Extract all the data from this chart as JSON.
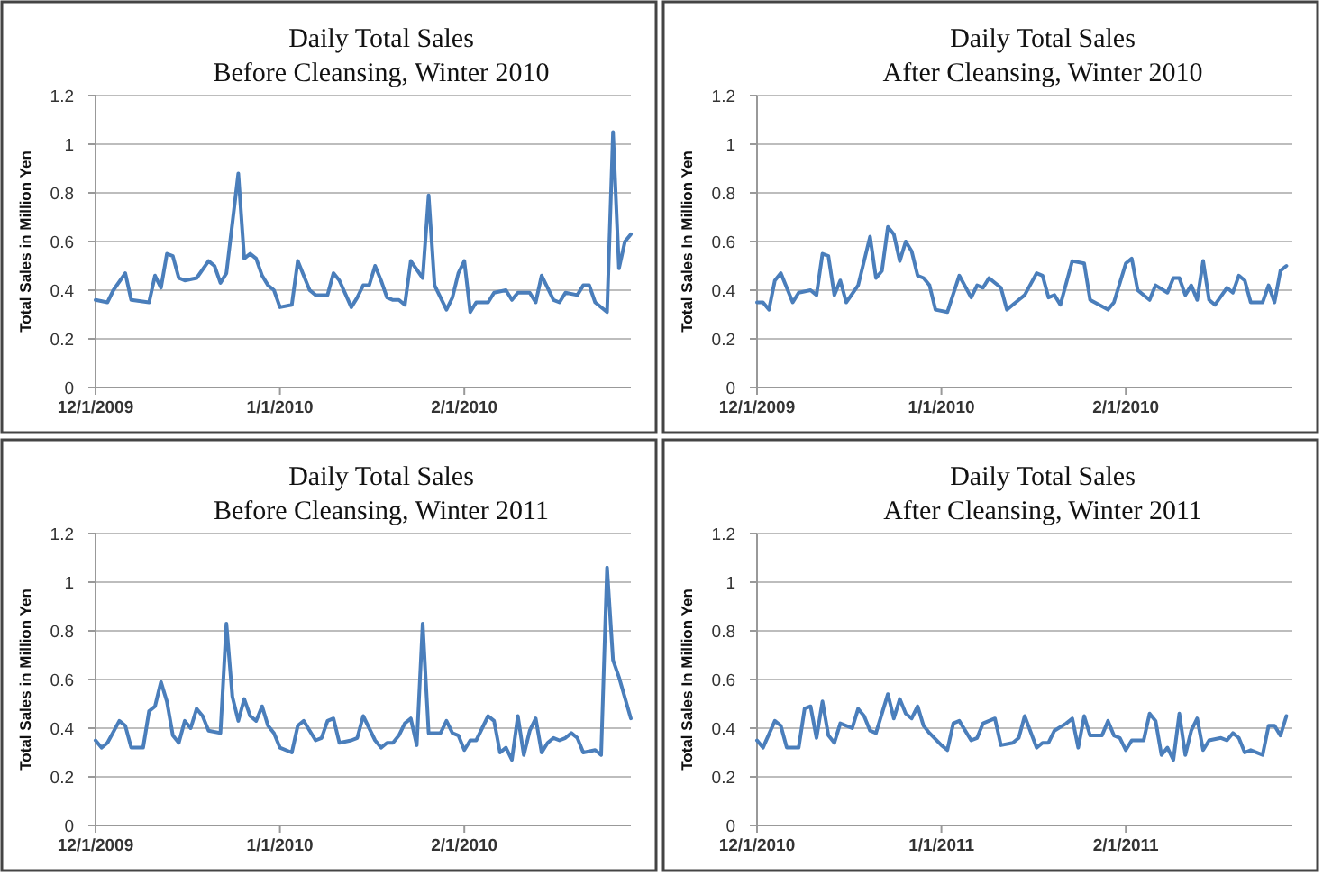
{
  "chart_data": [
    {
      "type": "line",
      "title": "Daily Total Sales",
      "subtitle": "Before Cleansing, Winter 2010",
      "ylabel": "Total Sales in Million Yen",
      "color": "#4a7ebb",
      "grid": "y",
      "xlim": [
        "2009-12-01",
        "2010-03-01"
      ],
      "ylim": [
        0,
        1.2
      ],
      "yticks": [
        0,
        0.2,
        0.4,
        0.6,
        0.8,
        1,
        1.2
      ],
      "xticks": [
        {
          "value": "2009-12-01",
          "label": "12/1/2009"
        },
        {
          "value": "2010-01-01",
          "label": "1/1/2010"
        },
        {
          "value": "2010-02-01",
          "label": "2/1/2010"
        }
      ],
      "x": [
        "2009-12-01",
        "2009-12-03",
        "2009-12-04",
        "2009-12-06",
        "2009-12-07",
        "2009-12-10",
        "2009-12-11",
        "2009-12-12",
        "2009-12-13",
        "2009-12-14",
        "2009-12-15",
        "2009-12-16",
        "2009-12-18",
        "2009-12-20",
        "2009-12-21",
        "2009-12-22",
        "2009-12-23",
        "2009-12-25",
        "2009-12-26",
        "2009-12-27",
        "2009-12-28",
        "2009-12-29",
        "2009-12-30",
        "2009-12-31",
        "2010-01-01",
        "2010-01-03",
        "2010-01-04",
        "2010-01-06",
        "2010-01-07",
        "2010-01-09",
        "2010-01-10",
        "2010-01-11",
        "2010-01-13",
        "2010-01-14",
        "2010-01-15",
        "2010-01-16",
        "2010-01-17",
        "2010-01-18",
        "2010-01-19",
        "2010-01-20",
        "2010-01-21",
        "2010-01-22",
        "2010-01-23",
        "2010-01-25",
        "2010-01-26",
        "2010-01-27",
        "2010-01-29",
        "2010-01-30",
        "2010-01-31",
        "2010-02-01",
        "2010-02-02",
        "2010-02-03",
        "2010-02-05",
        "2010-02-06",
        "2010-02-08",
        "2010-02-09",
        "2010-02-10",
        "2010-02-12",
        "2010-02-13",
        "2010-02-14",
        "2010-02-16",
        "2010-02-17",
        "2010-02-18",
        "2010-02-20",
        "2010-02-21",
        "2010-02-22",
        "2010-02-23",
        "2010-02-25",
        "2010-02-26",
        "2010-02-27",
        "2010-02-28",
        "2010-03-01"
      ],
      "values": [
        0.36,
        0.35,
        0.4,
        0.47,
        0.36,
        0.35,
        0.46,
        0.41,
        0.55,
        0.54,
        0.45,
        0.44,
        0.45,
        0.52,
        0.5,
        0.43,
        0.47,
        0.88,
        0.53,
        0.55,
        0.53,
        0.46,
        0.42,
        0.4,
        0.33,
        0.34,
        0.52,
        0.4,
        0.38,
        0.38,
        0.47,
        0.44,
        0.33,
        0.37,
        0.42,
        0.42,
        0.5,
        0.44,
        0.37,
        0.36,
        0.36,
        0.34,
        0.52,
        0.45,
        0.79,
        0.42,
        0.32,
        0.37,
        0.47,
        0.52,
        0.31,
        0.35,
        0.35,
        0.39,
        0.4,
        0.36,
        0.39,
        0.39,
        0.35,
        0.46,
        0.36,
        0.35,
        0.39,
        0.38,
        0.42,
        0.42,
        0.35,
        0.31,
        1.05,
        0.49,
        0.6,
        0.63
      ]
    },
    {
      "type": "line",
      "title": "Daily Total Sales",
      "subtitle": "After Cleansing, Winter 2010",
      "ylabel": "Total Sales In Million Yen",
      "color": "#4a7ebb",
      "grid": "y",
      "xlim": [
        "2009-12-01",
        "2010-03-01"
      ],
      "ylim": [
        0,
        1.2
      ],
      "yticks": [
        0,
        0.2,
        0.4,
        0.6,
        0.8,
        1,
        1.2
      ],
      "xticks": [
        {
          "value": "2009-12-01",
          "label": "12/1/2009"
        },
        {
          "value": "2010-01-01",
          "label": "1/1/2010"
        },
        {
          "value": "2010-02-01",
          "label": "2/1/2010"
        }
      ],
      "x": [
        "2009-12-01",
        "2009-12-02",
        "2009-12-03",
        "2009-12-04",
        "2009-12-05",
        "2009-12-07",
        "2009-12-08",
        "2009-12-10",
        "2009-12-11",
        "2009-12-12",
        "2009-12-13",
        "2009-12-14",
        "2009-12-15",
        "2009-12-16",
        "2009-12-18",
        "2009-12-20",
        "2009-12-21",
        "2009-12-22",
        "2009-12-23",
        "2009-12-24",
        "2009-12-25",
        "2009-12-26",
        "2009-12-27",
        "2009-12-28",
        "2009-12-29",
        "2009-12-30",
        "2009-12-31",
        "2010-01-02",
        "2010-01-04",
        "2010-01-06",
        "2010-01-07",
        "2010-01-08",
        "2010-01-09",
        "2010-01-11",
        "2010-01-12",
        "2010-01-14",
        "2010-01-15",
        "2010-01-17",
        "2010-01-18",
        "2010-01-19",
        "2010-01-20",
        "2010-01-21",
        "2010-01-23",
        "2010-01-25",
        "2010-01-26",
        "2010-01-29",
        "2010-01-30",
        "2010-02-01",
        "2010-02-02",
        "2010-02-03",
        "2010-02-05",
        "2010-02-06",
        "2010-02-08",
        "2010-02-09",
        "2010-02-10",
        "2010-02-11",
        "2010-02-12",
        "2010-02-13",
        "2010-02-14",
        "2010-02-15",
        "2010-02-16",
        "2010-02-18",
        "2010-02-19",
        "2010-02-20",
        "2010-02-21",
        "2010-02-22",
        "2010-02-24",
        "2010-02-25",
        "2010-02-26",
        "2010-02-27",
        "2010-02-28"
      ],
      "values": [
        0.35,
        0.35,
        0.32,
        0.44,
        0.47,
        0.35,
        0.39,
        0.4,
        0.38,
        0.55,
        0.54,
        0.38,
        0.44,
        0.35,
        0.42,
        0.62,
        0.45,
        0.48,
        0.66,
        0.63,
        0.52,
        0.6,
        0.56,
        0.46,
        0.45,
        0.42,
        0.32,
        0.31,
        0.46,
        0.37,
        0.42,
        0.41,
        0.45,
        0.41,
        0.32,
        0.36,
        0.38,
        0.47,
        0.46,
        0.37,
        0.38,
        0.34,
        0.52,
        0.51,
        0.36,
        0.32,
        0.35,
        0.51,
        0.53,
        0.4,
        0.36,
        0.42,
        0.39,
        0.45,
        0.45,
        0.38,
        0.42,
        0.36,
        0.52,
        0.36,
        0.34,
        0.41,
        0.39,
        0.46,
        0.44,
        0.35,
        0.35,
        0.42,
        0.35,
        0.48,
        0.5
      ]
    },
    {
      "type": "line",
      "title": "Daily Total Sales",
      "subtitle": "Before Cleansing, Winter 2011",
      "ylabel": "Total Sales in Million Yen",
      "color": "#4a7ebb",
      "grid": "y",
      "xlim": [
        "2009-12-01",
        "2010-03-01"
      ],
      "ylim": [
        0,
        1.2
      ],
      "yticks": [
        0,
        0.2,
        0.4,
        0.6,
        0.8,
        1,
        1.2
      ],
      "xticks": [
        {
          "value": "2009-12-01",
          "label": "12/1/2009"
        },
        {
          "value": "2010-01-01",
          "label": "1/1/2010"
        },
        {
          "value": "2010-02-01",
          "label": "2/1/2010"
        }
      ],
      "x": [
        "2009-12-01",
        "2009-12-02",
        "2009-12-03",
        "2009-12-05",
        "2009-12-06",
        "2009-12-07",
        "2009-12-08",
        "2009-12-09",
        "2009-12-10",
        "2009-12-11",
        "2009-12-12",
        "2009-12-13",
        "2009-12-14",
        "2009-12-15",
        "2009-12-16",
        "2009-12-17",
        "2009-12-18",
        "2009-12-19",
        "2009-12-20",
        "2009-12-22",
        "2009-12-23",
        "2009-12-24",
        "2009-12-25",
        "2009-12-26",
        "2009-12-27",
        "2009-12-28",
        "2009-12-29",
        "2009-12-30",
        "2009-12-31",
        "2010-01-01",
        "2010-01-03",
        "2010-01-04",
        "2010-01-05",
        "2010-01-06",
        "2010-01-07",
        "2010-01-08",
        "2010-01-09",
        "2010-01-10",
        "2010-01-11",
        "2010-01-13",
        "2010-01-14",
        "2010-01-15",
        "2010-01-17",
        "2010-01-18",
        "2010-01-19",
        "2010-01-20",
        "2010-01-21",
        "2010-01-22",
        "2010-01-23",
        "2010-01-24",
        "2010-01-25",
        "2010-01-26",
        "2010-01-28",
        "2010-01-29",
        "2010-01-30",
        "2010-01-31",
        "2010-02-01",
        "2010-02-02",
        "2010-02-03",
        "2010-02-05",
        "2010-02-06",
        "2010-02-07",
        "2010-02-08",
        "2010-02-09",
        "2010-02-10",
        "2010-02-11",
        "2010-02-12",
        "2010-02-13",
        "2010-02-14",
        "2010-02-15",
        "2010-02-16",
        "2010-02-17",
        "2010-02-18",
        "2010-02-19",
        "2010-02-20",
        "2010-02-21",
        "2010-02-23",
        "2010-02-24",
        "2010-02-25",
        "2010-02-26",
        "2010-02-27",
        "2010-03-01"
      ],
      "values": [
        0.35,
        0.32,
        0.34,
        0.43,
        0.41,
        0.32,
        0.32,
        0.32,
        0.47,
        0.49,
        0.59,
        0.51,
        0.37,
        0.34,
        0.43,
        0.4,
        0.48,
        0.45,
        0.39,
        0.38,
        0.83,
        0.53,
        0.43,
        0.52,
        0.45,
        0.43,
        0.49,
        0.41,
        0.38,
        0.32,
        0.3,
        0.41,
        0.43,
        0.39,
        0.35,
        0.36,
        0.43,
        0.44,
        0.34,
        0.35,
        0.36,
        0.45,
        0.35,
        0.32,
        0.34,
        0.34,
        0.37,
        0.42,
        0.44,
        0.33,
        0.83,
        0.38,
        0.38,
        0.43,
        0.38,
        0.37,
        0.31,
        0.35,
        0.35,
        0.45,
        0.43,
        0.3,
        0.32,
        0.27,
        0.45,
        0.29,
        0.39,
        0.44,
        0.3,
        0.34,
        0.36,
        0.35,
        0.36,
        0.38,
        0.36,
        0.3,
        0.31,
        0.29,
        1.06,
        0.68,
        0.61,
        0.44
      ]
    },
    {
      "type": "line",
      "title": "Daily Total Sales",
      "subtitle": "After Cleansing, Winter 2011",
      "ylabel": "Total Sales In Million Yen",
      "color": "#4a7ebb",
      "grid": "y",
      "xlim": [
        "2010-12-01",
        "2011-03-01"
      ],
      "ylim": [
        0,
        1.2
      ],
      "yticks": [
        0,
        0.2,
        0.4,
        0.6,
        0.8,
        1,
        1.2
      ],
      "xticks": [
        {
          "value": "2010-12-01",
          "label": "12/1/2010"
        },
        {
          "value": "2011-01-01",
          "label": "1/1/2011"
        },
        {
          "value": "2011-02-01",
          "label": "2/1/2011"
        }
      ],
      "x": [
        "2010-12-01",
        "2010-12-02",
        "2010-12-04",
        "2010-12-05",
        "2010-12-06",
        "2010-12-08",
        "2010-12-09",
        "2010-12-10",
        "2010-12-11",
        "2010-12-12",
        "2010-12-13",
        "2010-12-14",
        "2010-12-15",
        "2010-12-17",
        "2010-12-18",
        "2010-12-19",
        "2010-12-20",
        "2010-12-21",
        "2010-12-23",
        "2010-12-24",
        "2010-12-25",
        "2010-12-26",
        "2010-12-27",
        "2010-12-28",
        "2010-12-29",
        "2010-12-30",
        "2011-01-01",
        "2011-01-02",
        "2011-01-03",
        "2011-01-04",
        "2011-01-06",
        "2011-01-07",
        "2011-01-08",
        "2011-01-10",
        "2011-01-11",
        "2011-01-13",
        "2011-01-14",
        "2011-01-15",
        "2011-01-17",
        "2011-01-18",
        "2011-01-19",
        "2011-01-20",
        "2011-01-22",
        "2011-01-23",
        "2011-01-24",
        "2011-01-25",
        "2011-01-26",
        "2011-01-28",
        "2011-01-29",
        "2011-01-30",
        "2011-01-31",
        "2011-02-01",
        "2011-02-02",
        "2011-02-04",
        "2011-02-05",
        "2011-02-06",
        "2011-02-07",
        "2011-02-08",
        "2011-02-09",
        "2011-02-10",
        "2011-02-11",
        "2011-02-12",
        "2011-02-13",
        "2011-02-14",
        "2011-02-15",
        "2011-02-17",
        "2011-02-18",
        "2011-02-19",
        "2011-02-20",
        "2011-02-21",
        "2011-02-22",
        "2011-02-24",
        "2011-02-25",
        "2011-02-26",
        "2011-02-27",
        "2011-02-28"
      ],
      "values": [
        0.35,
        0.32,
        0.43,
        0.41,
        0.32,
        0.32,
        0.48,
        0.49,
        0.36,
        0.51,
        0.37,
        0.34,
        0.42,
        0.4,
        0.48,
        0.45,
        0.39,
        0.38,
        0.54,
        0.44,
        0.52,
        0.46,
        0.44,
        0.49,
        0.41,
        0.38,
        0.33,
        0.31,
        0.42,
        0.43,
        0.35,
        0.36,
        0.42,
        0.44,
        0.33,
        0.34,
        0.36,
        0.45,
        0.32,
        0.34,
        0.34,
        0.39,
        0.42,
        0.44,
        0.32,
        0.45,
        0.37,
        0.37,
        0.43,
        0.37,
        0.36,
        0.31,
        0.35,
        0.35,
        0.46,
        0.43,
        0.29,
        0.32,
        0.27,
        0.46,
        0.29,
        0.39,
        0.44,
        0.31,
        0.35,
        0.36,
        0.35,
        0.38,
        0.36,
        0.3,
        0.31,
        0.29,
        0.41,
        0.41,
        0.37,
        0.45
      ]
    }
  ]
}
